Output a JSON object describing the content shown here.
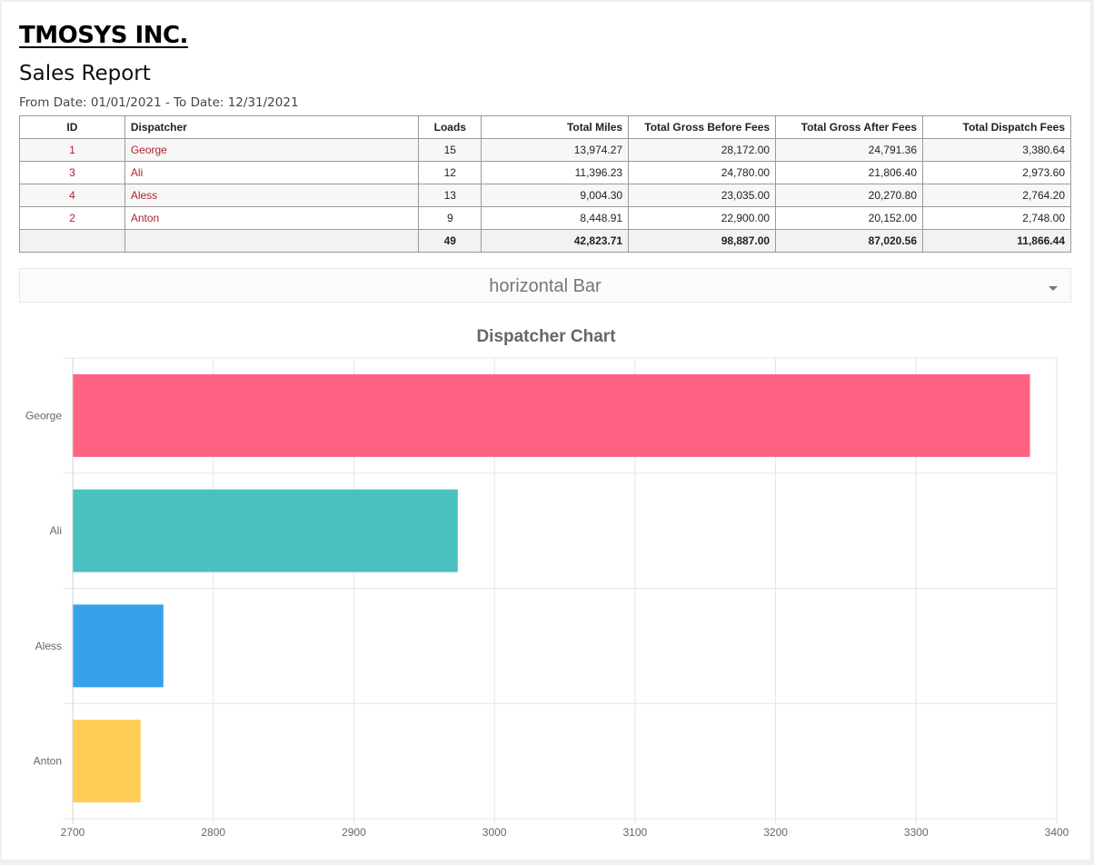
{
  "company": "TMOSYS INC.",
  "report_title": "Sales Report",
  "date_range": "From Date: 01/01/2021 - To Date: 12/31/2021",
  "table": {
    "headers": [
      "ID",
      "Dispatcher",
      "Loads",
      "Total Miles",
      "Total Gross Before Fees",
      "Total Gross After Fees",
      "Total Dispatch Fees"
    ],
    "rows": [
      [
        "1",
        "George",
        "15",
        "13,974.27",
        "28,172.00",
        "24,791.36",
        "3,380.64"
      ],
      [
        "3",
        "Ali",
        "12",
        "11,396.23",
        "24,780.00",
        "21,806.40",
        "2,973.60"
      ],
      [
        "4",
        "Aless",
        "13",
        "9,004.30",
        "23,035.00",
        "20,270.80",
        "2,764.20"
      ],
      [
        "2",
        "Anton",
        "9",
        "8,448.91",
        "22,900.00",
        "20,152.00",
        "2,748.00"
      ]
    ],
    "totals": [
      "",
      "",
      "49",
      "42,823.71",
      "98,887.00",
      "87,020.56",
      "11,866.44"
    ]
  },
  "chart_select": {
    "value": "horizontal Bar"
  },
  "chart_data": {
    "type": "bar",
    "orientation": "horizontal",
    "title": "Dispatcher Chart",
    "categories": [
      "George",
      "Ali",
      "Aless",
      "Anton"
    ],
    "values": [
      3380.64,
      2973.6,
      2764.2,
      2748.0
    ],
    "colors": [
      "#ff6384",
      "#4bc0c0",
      "#36a2eb",
      "#ffcd56"
    ],
    "xlim": [
      2700,
      3400
    ],
    "xticks": [
      "2700",
      "2800",
      "2900",
      "3000",
      "3100",
      "3200",
      "3300",
      "3400"
    ],
    "grid": true,
    "legend": "none"
  }
}
